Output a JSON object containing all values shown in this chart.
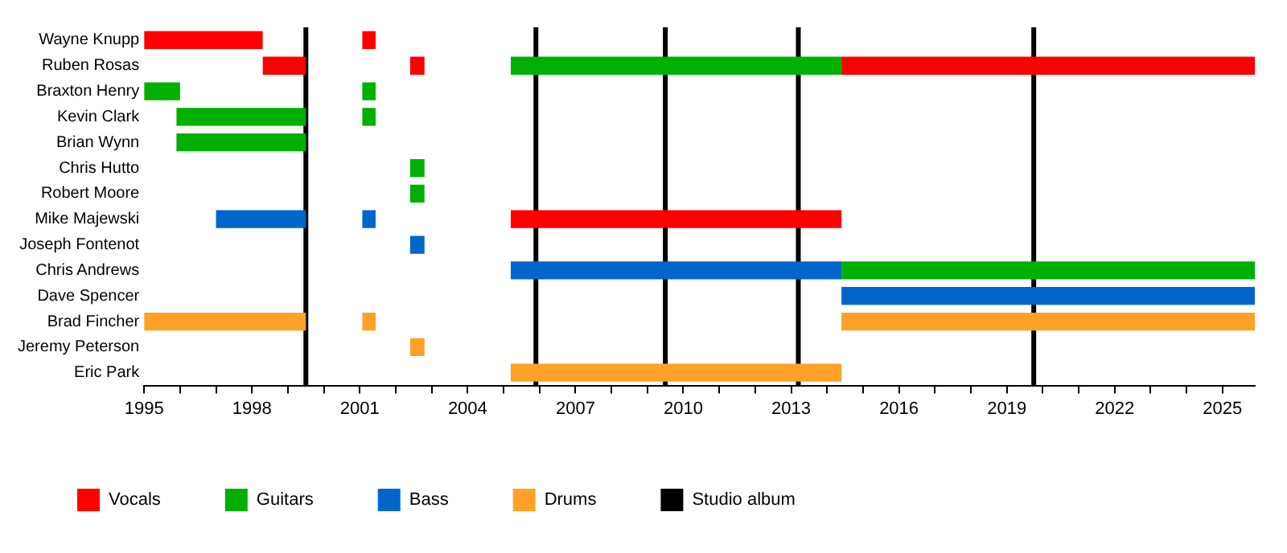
{
  "chart_data": {
    "type": "bar",
    "orientation": "horizontal",
    "categories": [
      "Wayne Knupp",
      "Ruben Rosas",
      "Braxton Henry",
      "Kevin Clark",
      "Brian Wynn",
      "Chris Hutto",
      "Robert Moore",
      "Mike Majewski",
      "Joseph Fontenot",
      "Chris Andrews",
      "Dave Spencer",
      "Brad Fincher",
      "Jeremy Peterson",
      "Eric Park"
    ],
    "series": [
      {
        "name": "Vocals",
        "color": "#ff0000",
        "base": [
          1995,
          1998.3,
          null,
          null,
          null,
          null,
          null,
          2005.2,
          null,
          null,
          null,
          null,
          null,
          null
        ],
        "values": [
          3.3,
          1.2,
          null,
          null,
          null,
          null,
          null,
          9.2,
          null,
          null,
          null,
          null,
          null,
          null
        ]
      },
      {
        "color": "#ff0000",
        "base": [
          2001.07,
          2002.4,
          null,
          null,
          null,
          null,
          null,
          null,
          null,
          null,
          null,
          null,
          null,
          null
        ],
        "values": [
          0.37,
          0.4,
          null,
          null,
          null,
          null,
          null,
          null,
          null,
          null,
          null,
          null,
          null,
          null
        ]
      },
      {
        "color": "#ff0000",
        "base": [
          null,
          2014.4,
          null,
          null,
          null,
          null,
          null,
          null,
          null,
          null,
          null,
          null,
          null,
          null
        ],
        "values": [
          null,
          11.5,
          null,
          null,
          null,
          null,
          null,
          null,
          null,
          null,
          null,
          null,
          null,
          null
        ]
      },
      {
        "name": "Guitars",
        "color": "#00b000",
        "base": [
          null,
          2005.2,
          1995,
          1995.9,
          1995.9,
          2002.4,
          2002.4,
          null,
          null,
          2014.4,
          null,
          null,
          null,
          null
        ],
        "values": [
          null,
          9.2,
          1.0,
          3.6,
          3.6,
          0.4,
          0.4,
          null,
          null,
          11.5,
          null,
          null,
          null,
          null
        ]
      },
      {
        "color": "#00b000",
        "base": [
          null,
          null,
          2001.07,
          2001.07,
          null,
          null,
          null,
          null,
          null,
          null,
          null,
          null,
          null,
          null
        ],
        "values": [
          null,
          null,
          0.37,
          0.37,
          null,
          null,
          null,
          null,
          null,
          null,
          null,
          null,
          null,
          null
        ]
      },
      {
        "name": "Bass",
        "color": "#0066cc",
        "base": [
          null,
          null,
          null,
          null,
          null,
          null,
          null,
          1997,
          2002.4,
          2005.2,
          2014.4,
          null,
          null,
          null
        ],
        "values": [
          null,
          null,
          null,
          null,
          null,
          null,
          null,
          2.5,
          0.4,
          9.2,
          11.5,
          null,
          null,
          null
        ]
      },
      {
        "color": "#0066cc",
        "base": [
          null,
          null,
          null,
          null,
          null,
          null,
          null,
          2001.07,
          null,
          null,
          null,
          null,
          null,
          null
        ],
        "values": [
          null,
          null,
          null,
          null,
          null,
          null,
          null,
          0.37,
          null,
          null,
          null,
          null,
          null,
          null
        ]
      },
      {
        "name": "Drums",
        "color": "#ffa126",
        "base": [
          null,
          null,
          null,
          null,
          null,
          null,
          null,
          null,
          null,
          null,
          null,
          1995,
          2002.4,
          2005.2
        ],
        "values": [
          null,
          null,
          null,
          null,
          null,
          null,
          null,
          null,
          null,
          null,
          null,
          4.5,
          0.4,
          9.2
        ]
      },
      {
        "color": "#ffa126",
        "base": [
          null,
          null,
          null,
          null,
          null,
          null,
          null,
          null,
          null,
          null,
          null,
          2001.07,
          null,
          null
        ],
        "values": [
          null,
          null,
          null,
          null,
          null,
          null,
          null,
          null,
          null,
          null,
          null,
          0.37,
          null,
          null
        ]
      },
      {
        "color": "#ffa126",
        "base": [
          null,
          null,
          null,
          null,
          null,
          null,
          null,
          null,
          null,
          null,
          null,
          2014.4,
          null,
          null
        ],
        "values": [
          null,
          null,
          null,
          null,
          null,
          null,
          null,
          null,
          null,
          null,
          null,
          11.5,
          null,
          null
        ]
      }
    ],
    "xlim": [
      1995,
      2025.9
    ],
    "xticks": [
      1995,
      {
        "value": 1996,
        "label": null
      },
      {
        "value": 1997,
        "label": null
      },
      1998,
      {
        "value": 1999,
        "label": null
      },
      {
        "value": 2000,
        "label": null
      },
      2001,
      {
        "value": 2002,
        "label": null
      },
      {
        "value": 2003,
        "label": null
      },
      2004,
      {
        "value": 2005,
        "label": null
      },
      {
        "value": 2006,
        "label": null
      },
      2007,
      {
        "value": 2008,
        "label": null
      },
      {
        "value": 2009,
        "label": null
      },
      2010,
      {
        "value": 2011,
        "label": null
      },
      {
        "value": 2012,
        "label": null
      },
      2013,
      {
        "value": 2014,
        "label": null
      },
      {
        "value": 2015,
        "label": null
      },
      2016,
      {
        "value": 2017,
        "label": null
      },
      {
        "value": 2018,
        "label": null
      },
      2019,
      {
        "value": 2020,
        "label": null
      },
      {
        "value": 2021,
        "label": null
      },
      2022,
      {
        "value": 2023,
        "label": null
      },
      {
        "value": 2024,
        "label": null
      },
      2025
    ],
    "ref_lines": [
      {
        "axis": "x",
        "value": 1999.5,
        "label": "Studio album",
        "color": "#000000"
      },
      {
        "axis": "x",
        "value": 2005.9,
        "color": "#000000"
      },
      {
        "axis": "x",
        "value": 2009.5,
        "color": "#000000"
      },
      {
        "axis": "x",
        "value": 2013.2,
        "color": "#000000"
      },
      {
        "axis": "x",
        "value": 2019.75,
        "color": "#000000"
      }
    ],
    "grid": false,
    "legend": "bottom"
  }
}
